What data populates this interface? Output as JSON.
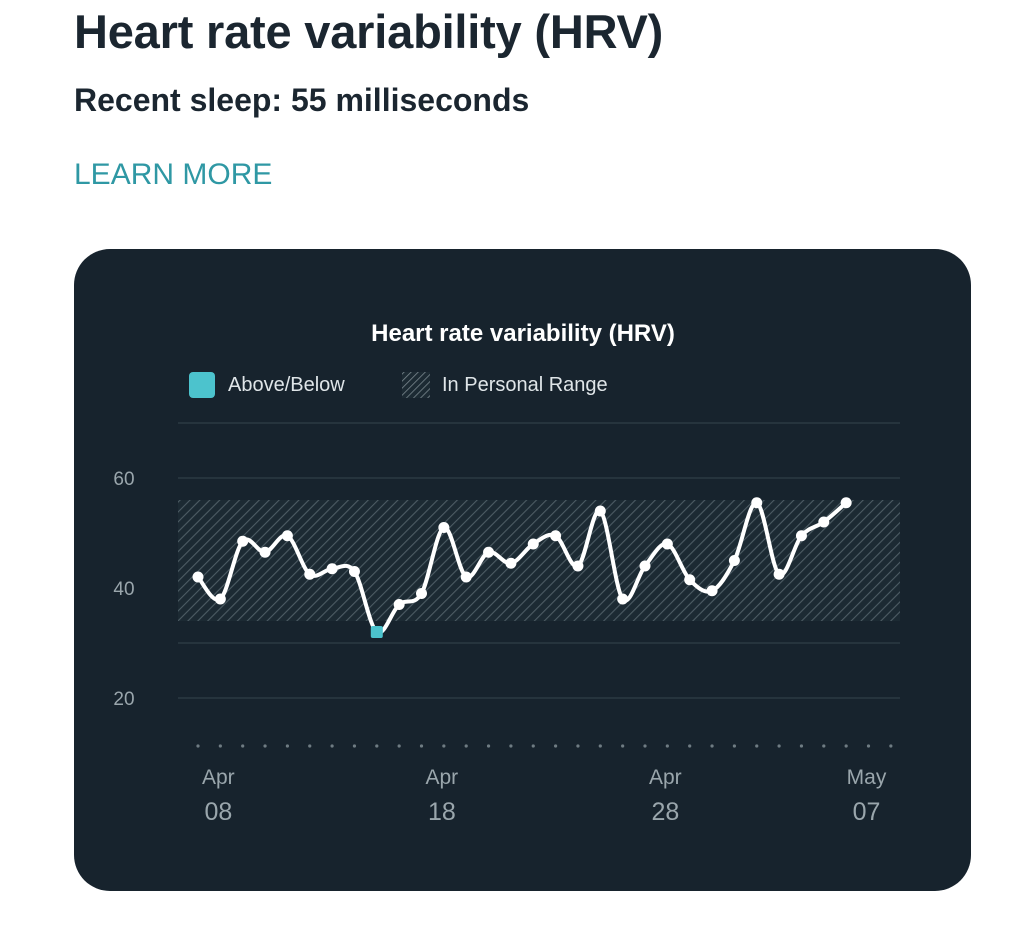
{
  "header": {
    "title": "Heart rate variability (HRV)",
    "subtitle": "Recent sleep: 55 milliseconds",
    "learn_more": "LEARN MORE"
  },
  "colors": {
    "accent": "#2f98a4",
    "card_bg": "#17232d",
    "line": "#ffffff",
    "out_of_range": "#4cc3cd"
  },
  "chart_data": {
    "type": "line",
    "title": "Heart rate variability (HRV)",
    "legend": [
      {
        "label": "Above/Below",
        "symbol": "solid",
        "color": "#4cc3cd"
      },
      {
        "label": "In Personal Range",
        "symbol": "hatched"
      }
    ],
    "legend_position": "top-left",
    "y_ticks": [
      60,
      40,
      20
    ],
    "ylim": [
      12,
      70
    ],
    "personal_range": [
      34,
      56
    ],
    "x_ticks": [
      {
        "month": "Apr",
        "day": "08",
        "index": 1
      },
      {
        "month": "Apr",
        "day": "18",
        "index": 11
      },
      {
        "month": "Apr",
        "day": "28",
        "index": 21
      },
      {
        "month": "May",
        "day": "07",
        "index": 30
      }
    ],
    "x_count": 32,
    "series": [
      {
        "start_index": 0,
        "values": [
          42,
          38,
          48.5,
          46.5,
          49.5,
          42.5,
          43.5,
          43,
          32,
          37,
          39,
          51,
          42,
          46.5,
          44.5,
          48,
          49.5,
          44,
          54,
          38,
          44,
          48,
          41.5,
          39.5,
          45,
          55.5,
          42.5,
          49.5,
          52,
          55.5
        ],
        "out_of_range_indices": [
          8
        ]
      }
    ],
    "grid": true
  }
}
